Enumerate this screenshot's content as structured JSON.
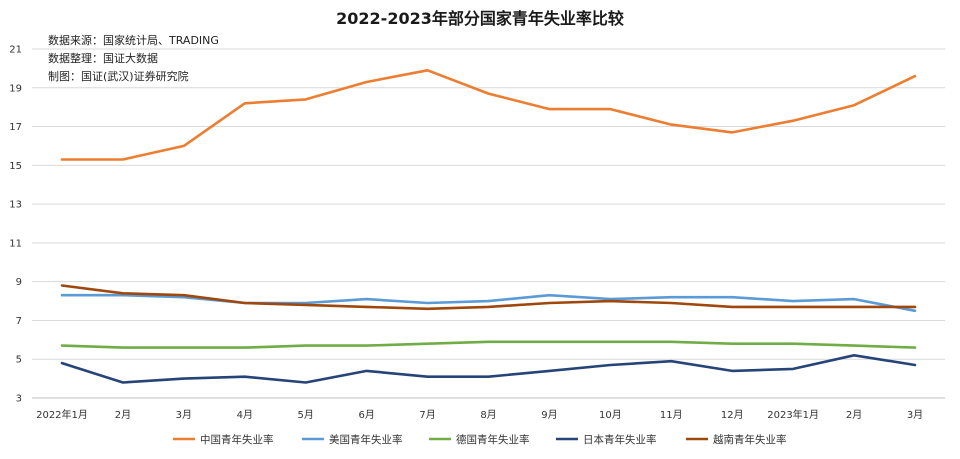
{
  "chart_data": {
    "type": "line",
    "title": "2022-2023年部分国家青年失业率比较",
    "source_lines": [
      "数据来源：国家统计局、TRADING",
      "数据整理：国证大数据",
      "制图：国证(武汉)证券研究院"
    ],
    "categories": [
      "2022年1月",
      "2月",
      "3月",
      "4月",
      "5月",
      "6月",
      "7月",
      "8月",
      "9月",
      "10月",
      "11月",
      "12月",
      "2023年1月",
      "2月",
      "3月"
    ],
    "ylim": [
      3,
      21
    ],
    "yticks": [
      3,
      5,
      7,
      9,
      11,
      13,
      15,
      17,
      19,
      21
    ],
    "grid": true,
    "legend_position": "bottom",
    "series": [
      {
        "name": "中国青年失业率",
        "color": "#ED7D31",
        "values": [
          15.3,
          15.3,
          16.0,
          18.2,
          18.4,
          19.3,
          19.9,
          18.7,
          17.9,
          17.9,
          17.1,
          16.7,
          17.3,
          18.1,
          19.6
        ]
      },
      {
        "name": "美国青年失业率",
        "color": "#5B9BD5",
        "values": [
          8.3,
          8.3,
          8.2,
          7.9,
          7.9,
          8.1,
          7.9,
          8.0,
          8.3,
          8.1,
          8.2,
          8.2,
          8.0,
          8.1,
          7.5
        ]
      },
      {
        "name": "德国青年失业率",
        "color": "#70AD47",
        "values": [
          5.7,
          5.6,
          5.6,
          5.6,
          5.7,
          5.7,
          5.8,
          5.9,
          5.9,
          5.9,
          5.9,
          5.8,
          5.8,
          5.7,
          5.6
        ]
      },
      {
        "name": "日本青年失业率",
        "color": "#264478",
        "values": [
          4.8,
          3.8,
          4.0,
          4.1,
          3.8,
          4.4,
          4.1,
          4.1,
          4.4,
          4.7,
          4.9,
          4.4,
          4.5,
          5.2,
          4.7
        ]
      },
      {
        "name": "越南青年失业率",
        "color": "#9E480E",
        "values": [
          8.8,
          8.4,
          8.3,
          7.9,
          7.8,
          7.7,
          7.6,
          7.7,
          7.9,
          8.0,
          7.9,
          7.7,
          7.7,
          7.7,
          7.7
        ]
      }
    ]
  }
}
